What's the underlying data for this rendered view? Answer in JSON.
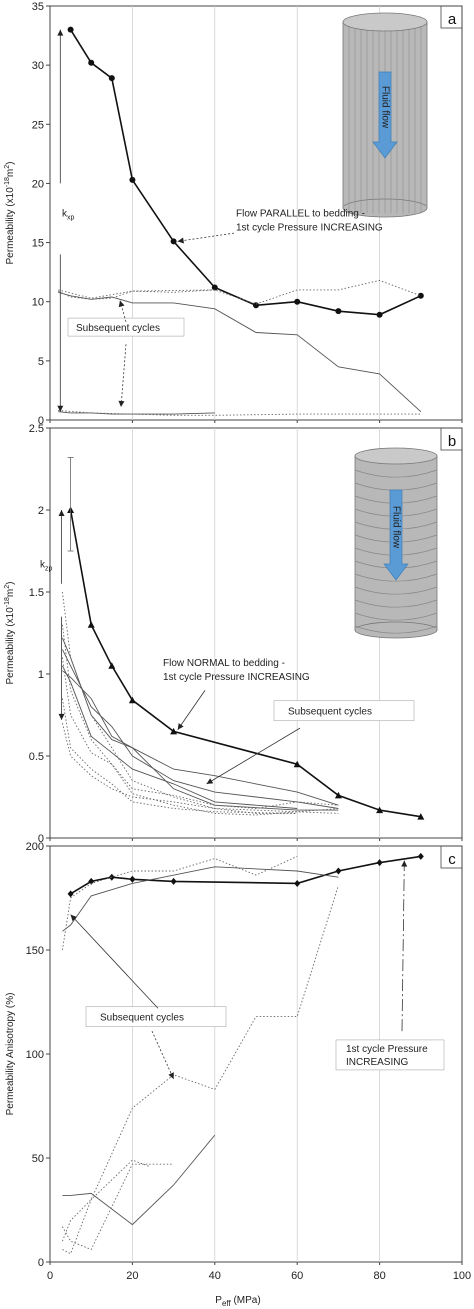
{
  "figure": {
    "xlabel_main": "P",
    "xlabel_sub": "eff",
    "xlabel_unit": " (MPa)",
    "x_ticks": [
      "0",
      "20",
      "40",
      "60",
      "80",
      "100"
    ]
  },
  "chart_data": [
    {
      "type": "line",
      "panel_label": "a",
      "ylabel_prefix": "Permeability (x10",
      "ylabel_exp": "-18",
      "ylabel_mid": "m",
      "ylabel_exp2": "2",
      "ylabel_suffix": ")",
      "ylim": [
        0,
        35
      ],
      "xlim": [
        0,
        100
      ],
      "y_ticks": [
        "0",
        "5",
        "10",
        "15",
        "20",
        "25",
        "30",
        "35"
      ],
      "k_label": "k",
      "k_sub": "xp",
      "cylinder_text": "Fluid flow",
      "series": [
        {
          "style": "first",
          "marker": "circle",
          "x": [
            5,
            10,
            15,
            20,
            30,
            40,
            50,
            60,
            70,
            80,
            90
          ],
          "y": [
            33,
            30.2,
            28.9,
            20.3,
            15.1,
            11.2,
            9.7,
            10,
            9.2,
            8.9,
            10.5
          ]
        },
        {
          "style": "solid",
          "x": [
            2,
            5,
            10,
            15,
            20,
            30,
            40,
            50,
            60,
            70,
            80,
            90
          ],
          "y": [
            10.8,
            10.5,
            10.2,
            10.4,
            9.9,
            9.9,
            9.4,
            7.4,
            7.2,
            4.5,
            3.9,
            0.7
          ]
        },
        {
          "style": "solid",
          "x": [
            2,
            5,
            10,
            15,
            20,
            30,
            40
          ],
          "y": [
            0.7,
            0.6,
            0.6,
            0.5,
            0.5,
            0.5,
            0.6
          ]
        },
        {
          "style": "dotted",
          "x": [
            2,
            5,
            10,
            15,
            20,
            30,
            40,
            50,
            60,
            70,
            80,
            90
          ],
          "y": [
            10.9,
            10.4,
            10.2,
            10.3,
            10.9,
            10.8,
            11,
            9.8,
            11,
            11,
            11.8,
            10.5
          ]
        },
        {
          "style": "dotted",
          "x": [
            2,
            10,
            20,
            40
          ],
          "y": [
            11,
            10.3,
            10.9,
            11
          ]
        },
        {
          "style": "dotted",
          "x": [
            2,
            10,
            20,
            30,
            40,
            60,
            90
          ],
          "y": [
            0.8,
            0.6,
            0.5,
            0.4,
            0.4,
            0.5,
            0.5
          ]
        }
      ],
      "annotations": {
        "first_line1": "Flow PARALLEL to bedding -",
        "first_line2": "1st cycle Pressure INCREASING",
        "subsequent": "Subsequent cycles"
      }
    },
    {
      "type": "line",
      "panel_label": "b",
      "ylabel_prefix": "Permeability (x10",
      "ylabel_exp": "-18",
      "ylabel_mid": "m",
      "ylabel_exp2": "2",
      "ylabel_suffix": ")",
      "ylim": [
        0,
        2.5
      ],
      "xlim": [
        0,
        100
      ],
      "y_ticks": [
        "0",
        "0.5",
        "1",
        "1.5",
        "2",
        "2.5"
      ],
      "k_label": "k",
      "k_sub": "zp",
      "cylinder_text": "Fluid flow",
      "error_bar": {
        "x": 5,
        "low": 1.75,
        "high": 2.32
      },
      "series": [
        {
          "style": "first",
          "marker": "triangle",
          "x": [
            5,
            10,
            15,
            20,
            30,
            60,
            70,
            80,
            90
          ],
          "y": [
            2,
            1.3,
            1.05,
            0.84,
            0.65,
            0.45,
            0.26,
            0.17,
            0.13
          ]
        },
        {
          "style": "solid",
          "x": [
            3,
            5,
            10,
            15,
            20,
            30,
            40,
            50,
            60,
            70
          ],
          "y": [
            1.22,
            1.1,
            0.75,
            0.6,
            0.55,
            0.42,
            0.38,
            0.33,
            0.28,
            0.2
          ]
        },
        {
          "style": "solid",
          "x": [
            3,
            5,
            10,
            15,
            20,
            30,
            40,
            60,
            70
          ],
          "y": [
            1.15,
            1.05,
            0.8,
            0.68,
            0.5,
            0.35,
            0.28,
            0.22,
            0.18
          ]
        },
        {
          "style": "solid",
          "x": [
            3,
            5,
            10,
            15,
            20,
            30,
            40,
            50,
            60
          ],
          "y": [
            1.05,
            0.95,
            0.62,
            0.52,
            0.42,
            0.33,
            0.22,
            0.2,
            0.18
          ]
        },
        {
          "style": "solid",
          "x": [
            3,
            5,
            10,
            15,
            20,
            30,
            40,
            60,
            70
          ],
          "y": [
            1.02,
            0.98,
            0.85,
            0.62,
            0.55,
            0.3,
            0.2,
            0.17,
            0.17
          ]
        },
        {
          "style": "dotted",
          "x": [
            3,
            5,
            10,
            15,
            20,
            30,
            40,
            50,
            60
          ],
          "y": [
            1.5,
            1.1,
            0.75,
            0.55,
            0.35,
            0.25,
            0.18,
            0.15,
            0.15
          ]
        },
        {
          "style": "dotted",
          "x": [
            3,
            5,
            10,
            15,
            20,
            30,
            40,
            50,
            60,
            70
          ],
          "y": [
            1.1,
            0.75,
            0.52,
            0.45,
            0.27,
            0.2,
            0.15,
            0.14,
            0.16,
            0.18
          ]
        },
        {
          "style": "dotted",
          "x": [
            3,
            5,
            10,
            15,
            20,
            30,
            40,
            60
          ],
          "y": [
            0.85,
            0.55,
            0.42,
            0.33,
            0.22,
            0.18,
            0.16,
            0.15
          ]
        },
        {
          "style": "dotted",
          "x": [
            3,
            5,
            10,
            15,
            20,
            30,
            40,
            60,
            70
          ],
          "y": [
            0.7,
            0.5,
            0.38,
            0.3,
            0.25,
            0.22,
            0.18,
            0.16,
            0.15
          ]
        },
        {
          "style": "dotted",
          "x": [
            3,
            5,
            10,
            15,
            20,
            30,
            40,
            50,
            60,
            70
          ],
          "y": [
            1.3,
            0.9,
            0.6,
            0.45,
            0.3,
            0.26,
            0.2,
            0.18,
            0.22,
            0.2
          ]
        }
      ],
      "annotations": {
        "first_line1": "Flow NORMAL to bedding -",
        "first_line2": "1st cycle Pressure INCREASING",
        "subsequent": "Subsequent cycles"
      }
    },
    {
      "type": "line",
      "panel_label": "c",
      "ylabel": "Permeability Anisotropy (%)",
      "ylim": [
        0,
        200
      ],
      "xlim": [
        0,
        100
      ],
      "y_ticks": [
        "0",
        "50",
        "100",
        "150",
        "200"
      ],
      "series": [
        {
          "style": "first",
          "marker": "diamond",
          "x": [
            5,
            10,
            15,
            20,
            30,
            60,
            70,
            80,
            90
          ],
          "y": [
            177,
            183,
            185,
            184,
            183,
            182,
            188,
            192,
            195
          ]
        },
        {
          "style": "solid",
          "x": [
            3,
            5,
            10,
            20,
            40,
            60,
            70
          ],
          "y": [
            159,
            162,
            176,
            182,
            190,
            188,
            185
          ]
        },
        {
          "style": "solid",
          "x": [
            3,
            5,
            10,
            20,
            30,
            40
          ],
          "y": [
            32,
            32,
            33,
            18,
            37,
            61
          ]
        },
        {
          "style": "dotted",
          "x": [
            3,
            5,
            10,
            20,
            30,
            40,
            50,
            60,
            70
          ],
          "y": [
            150,
            175,
            182,
            188,
            188,
            194,
            186,
            195,
            null
          ]
        },
        {
          "style": "dotted",
          "x": [
            3,
            5,
            10,
            20,
            30,
            40,
            50,
            60,
            70
          ],
          "y": [
            10,
            20,
            30,
            74,
            90,
            83,
            118,
            118,
            181
          ]
        },
        {
          "style": "dotted",
          "x": [
            3,
            5,
            10,
            20,
            30
          ],
          "y": [
            17,
            10,
            6,
            47,
            47
          ]
        },
        {
          "style": "dotted",
          "x": [
            3,
            5,
            10,
            20,
            24
          ],
          "y": [
            6,
            4,
            30,
            49,
            46
          ]
        }
      ],
      "annotations": {
        "subsequent": "Subsequent cycles",
        "first_line1": "1st cycle Pressure",
        "first_line2": "INCREASING"
      }
    }
  ]
}
